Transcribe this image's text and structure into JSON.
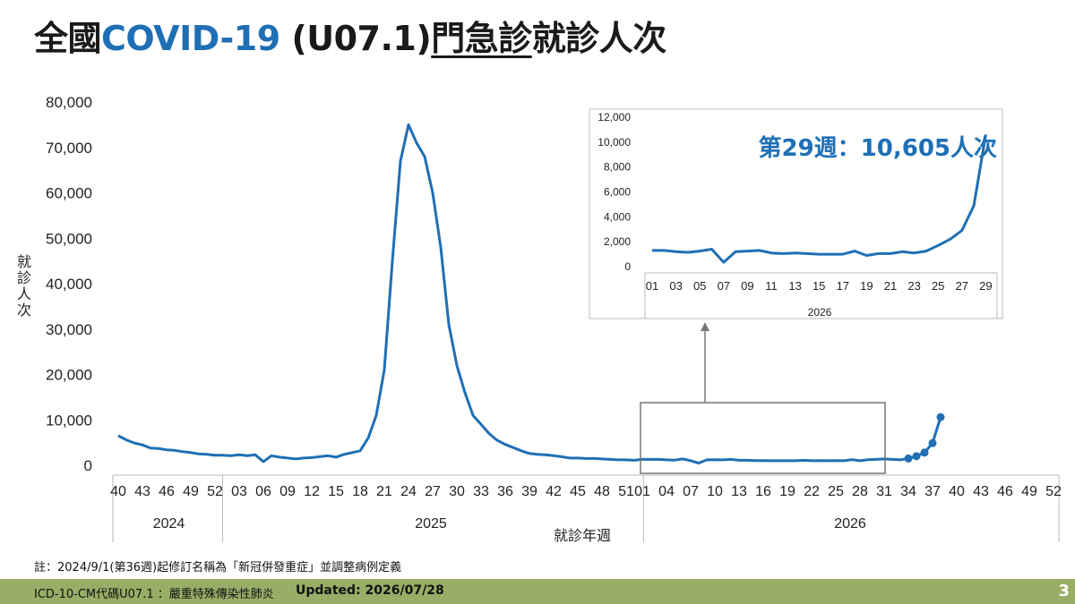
{
  "title": {
    "part1": "全國",
    "part2": "COVID-19",
    "part3": " (U07.1)",
    "part4": "門急診",
    "part5": "就診人次"
  },
  "chart_data": [
    {
      "type": "line",
      "ylabel": "就\n診\n人\n次",
      "xlabel": "就診年週",
      "ylim": [
        0,
        80000
      ],
      "yticks": [
        0,
        10000,
        20000,
        30000,
        40000,
        50000,
        60000,
        70000,
        80000
      ],
      "ytick_labels": [
        "0",
        "10,000",
        "20,000",
        "30,000",
        "40,000",
        "50,000",
        "60,000",
        "70,000",
        "80,000"
      ],
      "years": [
        {
          "label": "2024",
          "start": 0,
          "end": 13
        },
        {
          "label": "2025",
          "start": 13,
          "end": 65
        },
        {
          "label": "2026",
          "start": 65,
          "end": 117
        }
      ],
      "xtick_labels": [
        "40",
        "43",
        "46",
        "49",
        "52",
        "03",
        "06",
        "09",
        "12",
        "15",
        "18",
        "21",
        "24",
        "27",
        "30",
        "33",
        "36",
        "39",
        "42",
        "45",
        "48",
        "51",
        "01",
        "04",
        "07",
        "10",
        "13",
        "16",
        "19",
        "22",
        "25",
        "28",
        "31",
        "34",
        "37",
        "40",
        "43",
        "46",
        "49",
        "52"
      ],
      "xtick_positions": [
        0,
        3,
        6,
        9,
        12,
        15,
        18,
        21,
        24,
        27,
        30,
        33,
        36,
        39,
        42,
        45,
        48,
        51,
        54,
        57,
        60,
        63,
        65,
        68,
        71,
        74,
        77,
        80,
        83,
        86,
        89,
        92,
        95,
        98,
        101,
        104,
        107,
        110,
        113,
        116
      ],
      "grid": false,
      "series": [
        {
          "name": "",
          "values": [
            6500,
            5600,
            4900,
            4500,
            3800,
            3700,
            3400,
            3300,
            3000,
            2800,
            2500,
            2400,
            2200,
            2200,
            2100,
            2300,
            2100,
            2300,
            800,
            2100,
            1800,
            1600,
            1400,
            1600,
            1700,
            1900,
            2100,
            1800,
            2400,
            2800,
            3200,
            6000,
            11000,
            21000,
            45000,
            67000,
            75000,
            71000,
            68000,
            60000,
            48000,
            31000,
            22000,
            16000,
            11000,
            9000,
            7000,
            5500,
            4600,
            3900,
            3200,
            2600,
            2400,
            2300,
            2100,
            1900,
            1600,
            1600,
            1500,
            1500,
            1400,
            1300,
            1200,
            1200,
            1100,
            1300,
            1300,
            1300,
            1200,
            1150,
            1400,
            1000,
            500,
            1200,
            1250,
            1200,
            1300,
            1100,
            1100,
            1050,
            1050,
            1000,
            1000,
            1000,
            1000,
            1100,
            1000,
            1050,
            1000,
            1050,
            1000,
            1250,
            1000,
            1250,
            1300,
            1400,
            1300,
            1200,
            1500,
            2000,
            2800,
            4900,
            10605
          ],
          "markers_last": 5
        }
      ]
    },
    {
      "type": "line",
      "ylim": [
        0,
        12000
      ],
      "yticks": [
        0,
        2000,
        4000,
        6000,
        8000,
        10000,
        12000
      ],
      "ytick_labels": [
        "0",
        "2,000",
        "4,000",
        "6,000",
        "8,000",
        "10,000",
        "12,000"
      ],
      "year_label": "2026",
      "xtick_labels": [
        "01",
        "03",
        "05",
        "07",
        "09",
        "11",
        "13",
        "15",
        "17",
        "19",
        "21",
        "23",
        "25",
        "27",
        "29"
      ],
      "annotation": "第29週：10,605人次",
      "series": [
        {
          "name": "",
          "values": [
            1300,
            1300,
            1200,
            1150,
            1250,
            1400,
            350,
            1200,
            1250,
            1300,
            1100,
            1050,
            1100,
            1050,
            1000,
            1000,
            1000,
            1250,
            900,
            1050,
            1050,
            1200,
            1100,
            1250,
            1700,
            2200,
            2900,
            4900,
            10605
          ]
        }
      ]
    }
  ],
  "note": "註：2024/9/1(第36週)起修訂名稱為「新冠併發重症」並調整病例定義",
  "footer": {
    "icd": "ICD-10-CM代碼U07.1 ：嚴重特殊傳染性肺炎",
    "updated": "Updated: 2026/07/28",
    "page": "3"
  },
  "colors": {
    "line": "#1f6fb5",
    "accent": "#1f6fb5",
    "footer_bg": "#98ad66"
  }
}
